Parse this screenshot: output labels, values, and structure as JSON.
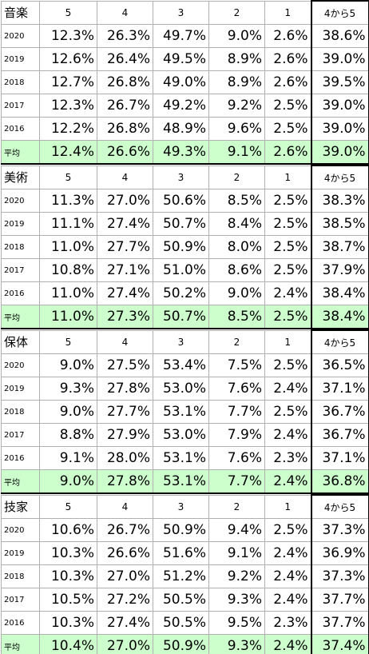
{
  "sections": [
    {
      "subject": "音楽",
      "columns": [
        "5",
        "4",
        "3",
        "2",
        "1",
        "4から5"
      ],
      "rows": [
        {
          "label": "2020",
          "values": [
            "12.3%",
            "26.3%",
            "49.7%",
            "9.0%",
            "2.6%",
            "38.6%"
          ]
        },
        {
          "label": "2019",
          "values": [
            "12.6%",
            "26.4%",
            "49.5%",
            "8.9%",
            "2.6%",
            "39.0%"
          ]
        },
        {
          "label": "2018",
          "values": [
            "12.7%",
            "26.8%",
            "49.0%",
            "8.9%",
            "2.6%",
            "39.5%"
          ]
        },
        {
          "label": "2017",
          "values": [
            "12.3%",
            "26.7%",
            "49.2%",
            "9.2%",
            "2.5%",
            "39.0%"
          ]
        },
        {
          "label": "2016",
          "values": [
            "12.2%",
            "26.8%",
            "48.9%",
            "9.6%",
            "2.5%",
            "39.0%"
          ]
        }
      ],
      "average": {
        "label": "平均",
        "values": [
          "12.4%",
          "26.6%",
          "49.3%",
          "9.1%",
          "2.6%",
          "39.0%"
        ]
      }
    },
    {
      "subject": "美術",
      "columns": [
        "5",
        "4",
        "3",
        "2",
        "1",
        "4から5"
      ],
      "rows": [
        {
          "label": "2020",
          "values": [
            "11.3%",
            "27.0%",
            "50.6%",
            "8.5%",
            "2.5%",
            "38.3%"
          ]
        },
        {
          "label": "2019",
          "values": [
            "11.1%",
            "27.4%",
            "50.7%",
            "8.4%",
            "2.5%",
            "38.5%"
          ]
        },
        {
          "label": "2018",
          "values": [
            "11.0%",
            "27.7%",
            "50.9%",
            "8.0%",
            "2.5%",
            "38.7%"
          ]
        },
        {
          "label": "2017",
          "values": [
            "10.8%",
            "27.1%",
            "51.0%",
            "8.6%",
            "2.5%",
            "37.9%"
          ]
        },
        {
          "label": "2016",
          "values": [
            "11.0%",
            "27.4%",
            "50.2%",
            "9.0%",
            "2.4%",
            "38.4%"
          ]
        }
      ],
      "average": {
        "label": "平均",
        "values": [
          "11.0%",
          "27.3%",
          "50.7%",
          "8.5%",
          "2.5%",
          "38.4%"
        ]
      }
    },
    {
      "subject": "保体",
      "columns": [
        "5",
        "4",
        "3",
        "2",
        "1",
        "4から5"
      ],
      "rows": [
        {
          "label": "2020",
          "values": [
            "9.0%",
            "27.5%",
            "53.4%",
            "7.5%",
            "2.5%",
            "36.5%"
          ]
        },
        {
          "label": "2019",
          "values": [
            "9.3%",
            "27.8%",
            "53.0%",
            "7.6%",
            "2.4%",
            "37.1%"
          ]
        },
        {
          "label": "2018",
          "values": [
            "9.0%",
            "27.7%",
            "53.1%",
            "7.7%",
            "2.5%",
            "36.7%"
          ]
        },
        {
          "label": "2017",
          "values": [
            "8.8%",
            "27.9%",
            "53.0%",
            "7.9%",
            "2.4%",
            "36.7%"
          ]
        },
        {
          "label": "2016",
          "values": [
            "9.1%",
            "28.0%",
            "53.1%",
            "7.6%",
            "2.3%",
            "37.1%"
          ]
        }
      ],
      "average": {
        "label": "平均",
        "values": [
          "9.0%",
          "27.8%",
          "53.1%",
          "7.7%",
          "2.4%",
          "36.8%"
        ]
      }
    },
    {
      "subject": "技家",
      "columns": [
        "5",
        "4",
        "3",
        "2",
        "1",
        "4から5"
      ],
      "rows": [
        {
          "label": "2020",
          "values": [
            "10.6%",
            "26.7%",
            "50.9%",
            "9.4%",
            "2.5%",
            "37.3%"
          ]
        },
        {
          "label": "2019",
          "values": [
            "10.3%",
            "26.6%",
            "51.6%",
            "9.1%",
            "2.4%",
            "36.9%"
          ]
        },
        {
          "label": "2018",
          "values": [
            "10.3%",
            "27.0%",
            "51.2%",
            "9.2%",
            "2.4%",
            "37.3%"
          ]
        },
        {
          "label": "2017",
          "values": [
            "10.5%",
            "27.2%",
            "50.5%",
            "9.3%",
            "2.4%",
            "37.7%"
          ]
        },
        {
          "label": "2016",
          "values": [
            "10.3%",
            "27.4%",
            "50.5%",
            "9.5%",
            "2.3%",
            "37.7%"
          ]
        }
      ],
      "average": {
        "label": "平均",
        "values": [
          "10.4%",
          "27.0%",
          "50.9%",
          "9.3%",
          "2.4%",
          "37.4%"
        ]
      }
    }
  ]
}
